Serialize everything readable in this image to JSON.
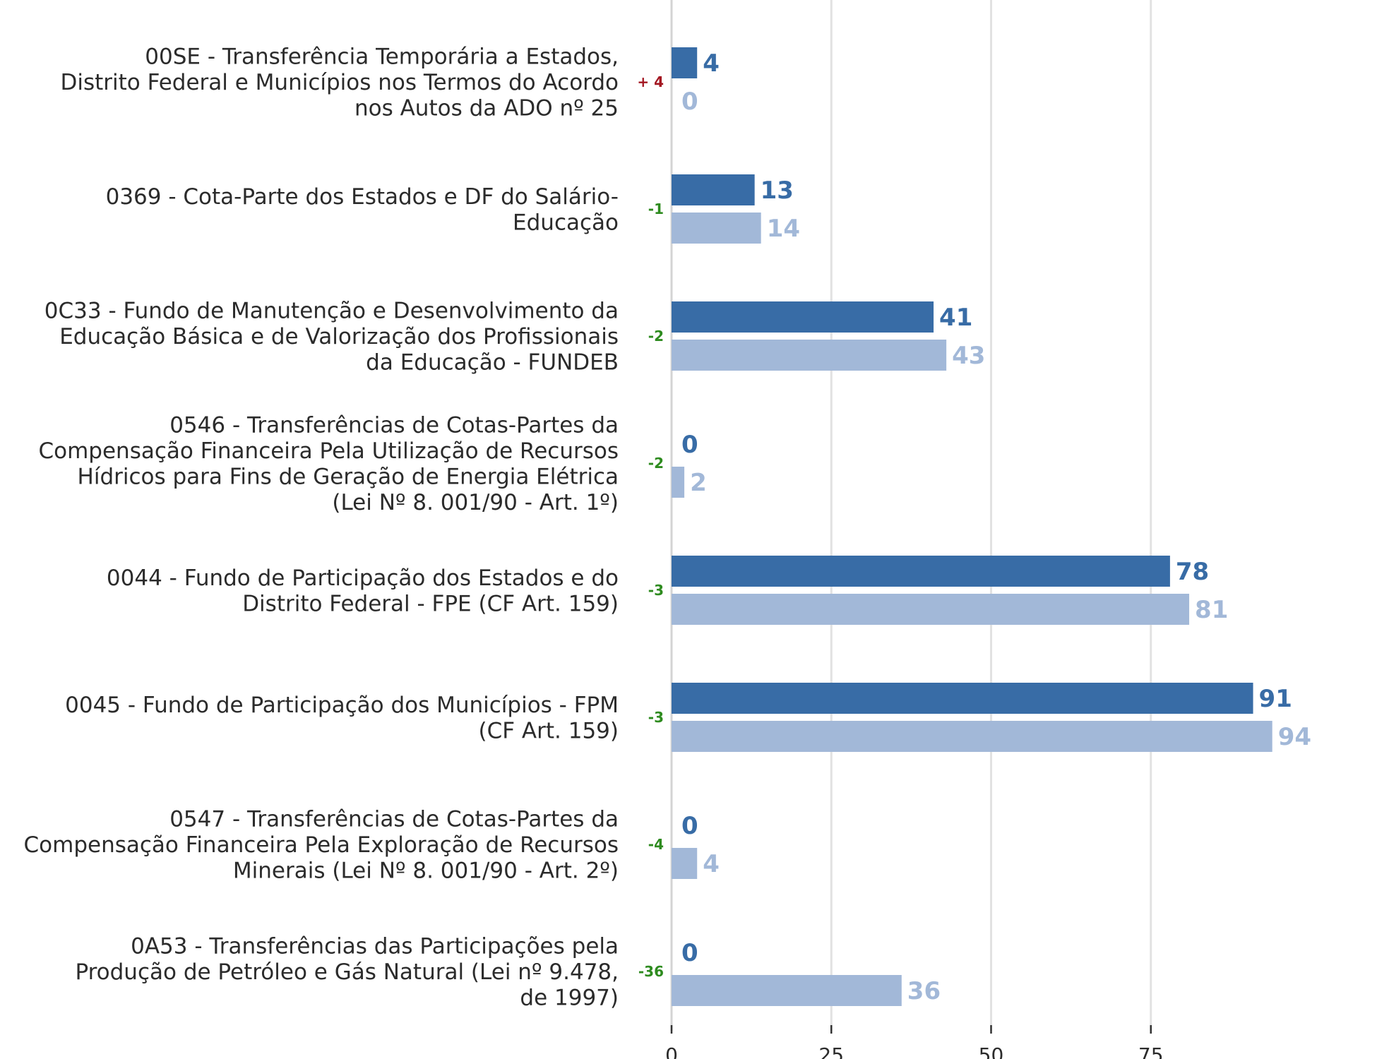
{
  "chart_data": {
    "type": "bar",
    "orientation": "horizontal",
    "categories": [
      [
        "00SE - Transferência Temporária a Estados,",
        "Distrito Federal e Municípios nos Termos do Acordo",
        "nos Autos da ADO nº 25"
      ],
      [
        "0369 - Cota-Parte dos Estados e DF do Salário-",
        "Educação"
      ],
      [
        "0C33 - Fundo de Manutenção e Desenvolvimento da",
        "Educação Básica e de Valorização dos Profissionais",
        "da Educação - FUNDEB"
      ],
      [
        "0546 - Transferências de Cotas-Partes da",
        "Compensação Financeira Pela Utilização de Recursos",
        "Hídricos para Fins de Geração de Energia Elétrica",
        "(Lei Nº 8. 001/90 - Art. 1º)"
      ],
      [
        "0044 - Fundo de Participação dos Estados e do",
        "Distrito Federal - FPE (CF Art. 159)"
      ],
      [
        "0045 - Fundo de Participação dos Municípios - FPM",
        "(CF Art. 159)"
      ],
      [
        "0547 - Transferências de Cotas-Partes da",
        "Compensação Financeira Pela Exploração de Recursos",
        "Minerais (Lei Nº 8. 001/90 - Art. 2º)"
      ],
      [
        "0A53 - Transferências das Participações pela",
        "Produção de Petróleo e Gás Natural (Lei nº 9.478,",
        "de 1997)"
      ]
    ],
    "series": [
      {
        "values": [
          4,
          13,
          41,
          0,
          78,
          91,
          0,
          0
        ],
        "color": "#386ca6"
      },
      {
        "values": [
          0,
          14,
          43,
          2,
          81,
          94,
          4,
          36
        ],
        "color": "#a2b8d8"
      }
    ],
    "differences": [
      "+ 4",
      "-1",
      "-2",
      "-2",
      "-3",
      "-3",
      "-4",
      "-36"
    ],
    "difference_colors": {
      "increase": "#a31621",
      "decrease": "#2e8b1f"
    },
    "x_ticks": [
      0,
      25,
      50,
      75
    ],
    "x_tick_labels": [
      "0",
      "25",
      "50",
      "75"
    ],
    "xlim": [
      0,
      100
    ],
    "grid": true,
    "grid_color": "#e2e2e2",
    "legend": "none"
  }
}
